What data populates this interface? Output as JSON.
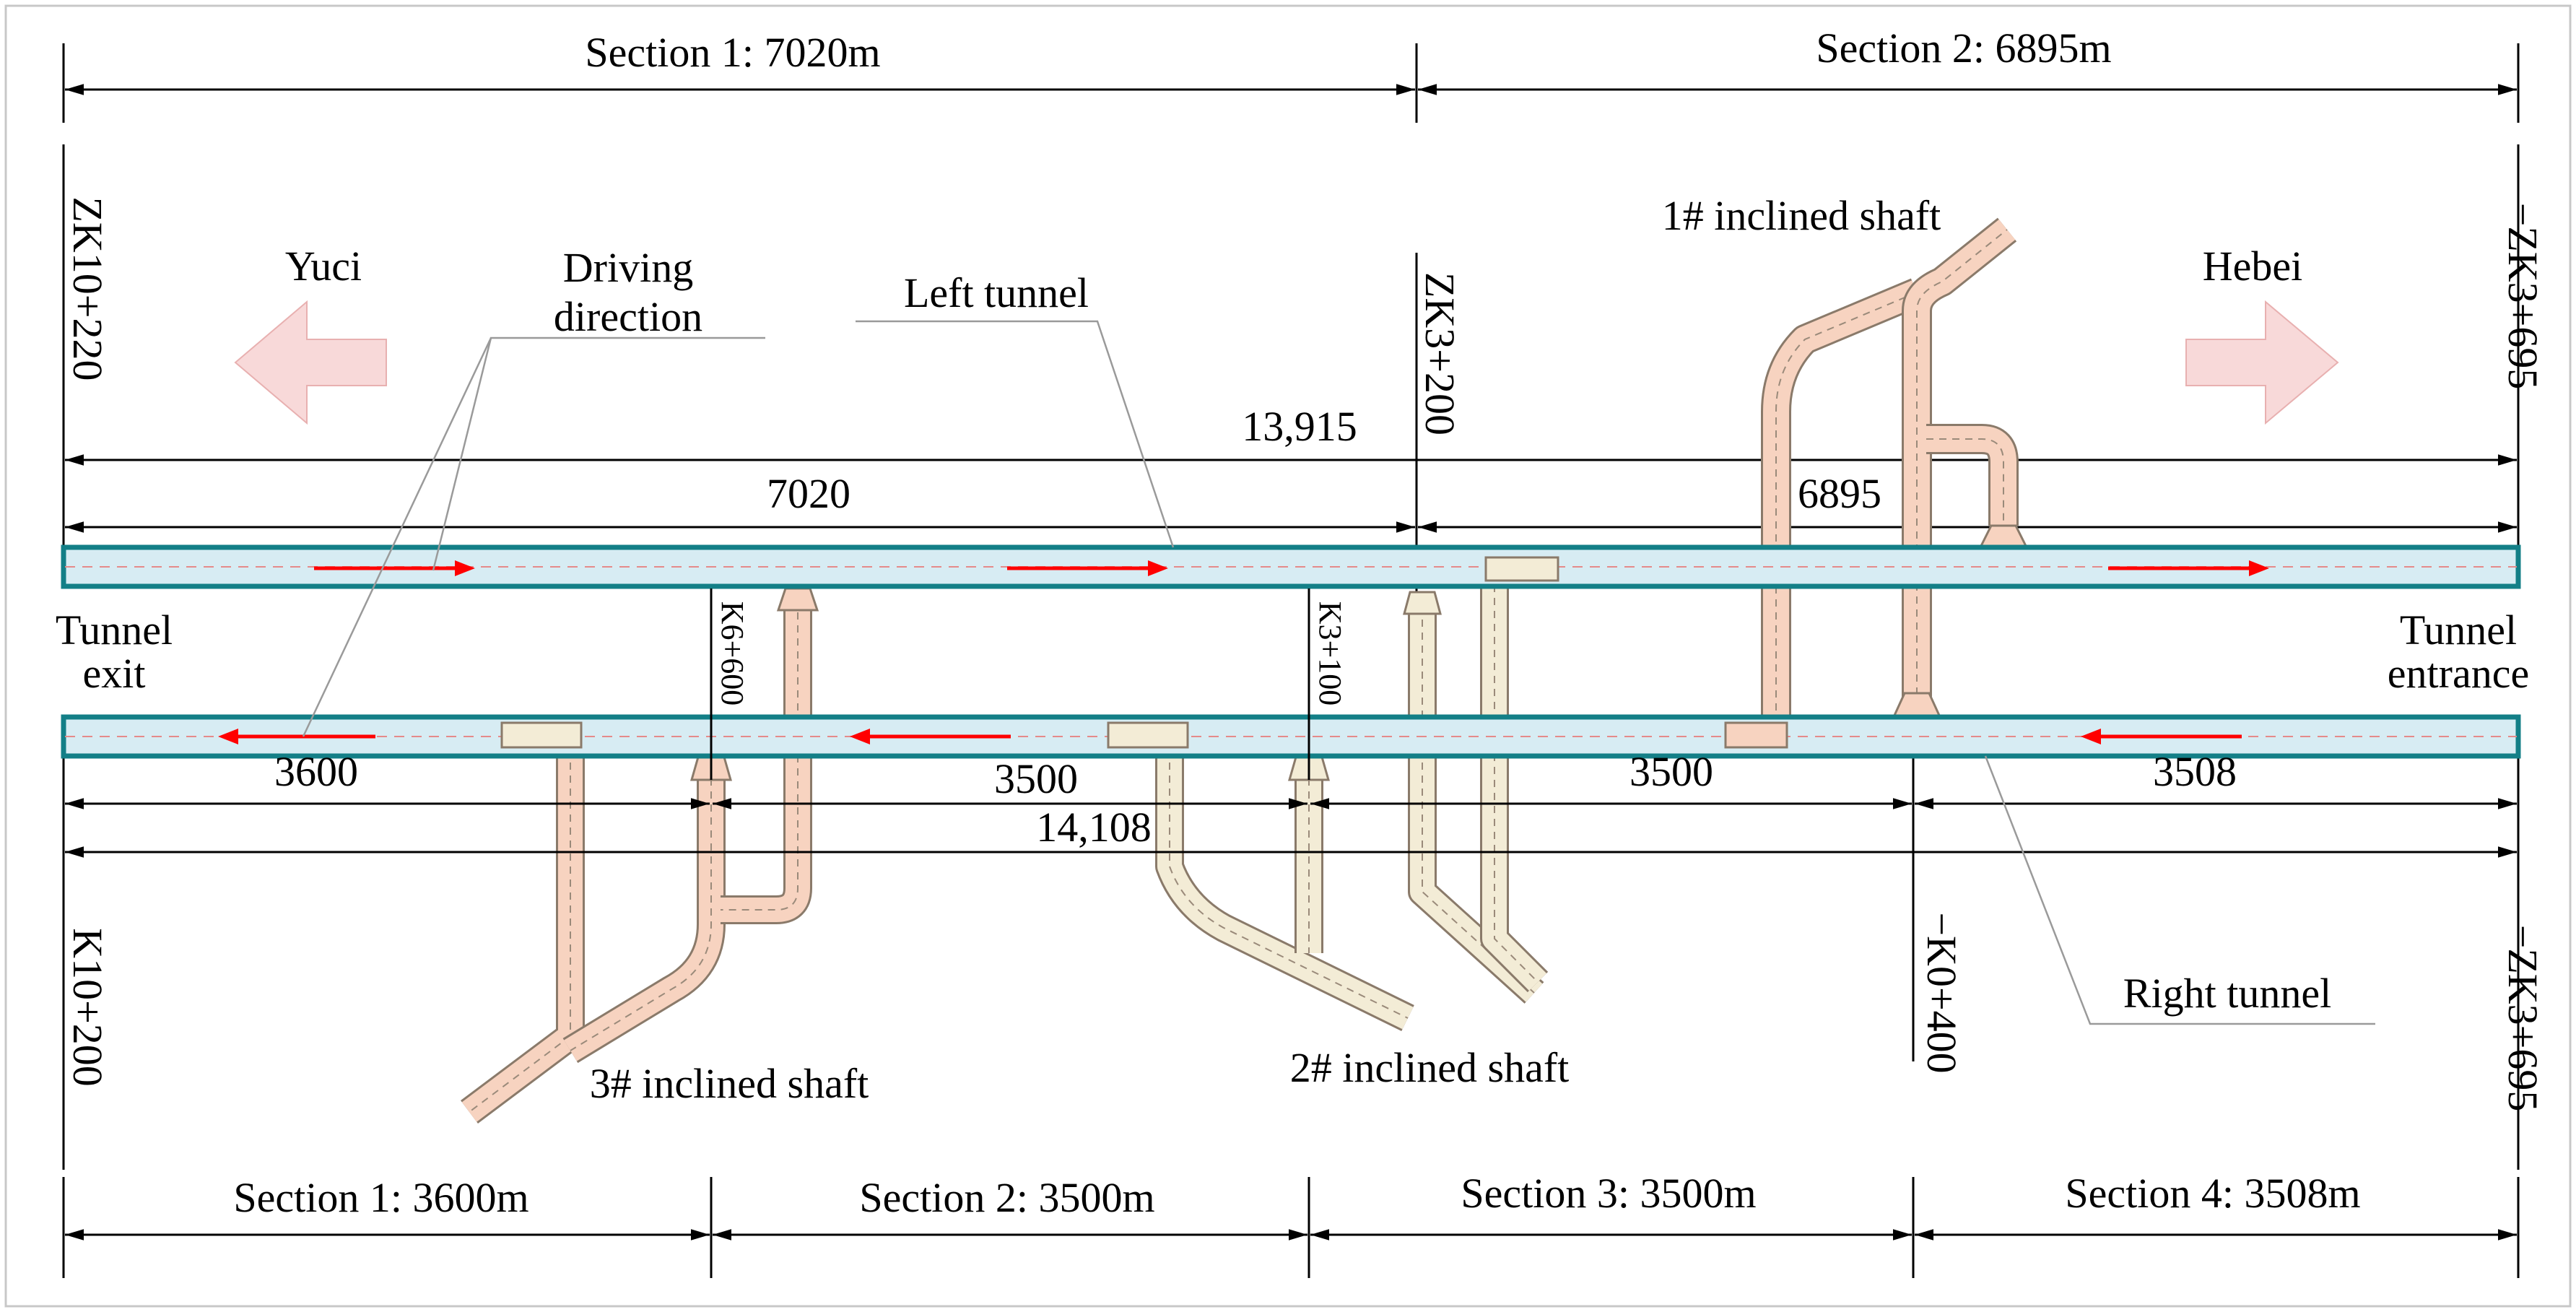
{
  "top_sections": [
    {
      "label": "Section 1: 7020m"
    },
    {
      "label": "Section 2: 6895m"
    }
  ],
  "bottom_sections": [
    {
      "label": "Section 1: 3600m"
    },
    {
      "label": "Section 2: 3500m"
    },
    {
      "label": "Section 3: 3500m"
    },
    {
      "label": "Section 4: 3508m"
    }
  ],
  "directions": {
    "left": "Yuci",
    "right": "Hebei",
    "left_color": "#f8d9d9",
    "right_color": "#f8d9d9"
  },
  "labels": {
    "driving_direction_line1": "Driving",
    "driving_direction_line2": "direction",
    "left_tunnel": "Left tunnel",
    "right_tunnel": "Right tunnel",
    "tunnel_exit_line1": "Tunnel",
    "tunnel_exit_line2": "exit",
    "tunnel_entrance_line1": "Tunnel",
    "tunnel_entrance_line2": "entrance"
  },
  "shafts": {
    "shaft1": "1# inclined shaft",
    "shaft2": "2# inclined shaft",
    "shaft3": "3# inclined shaft",
    "fill_color": "#f7d3c0",
    "light_fill_color": "#f3ecd6"
  },
  "stations": {
    "zk10_220": "ZK10+220",
    "zk3_200": "ZK3+200",
    "zk3_695_top": "−ZK3+695",
    "k10_200": "K10+200",
    "k6_600": "K6+600",
    "k3_100": "K3+100",
    "k0_400": "−K0+400",
    "zk3_695_bottom": "−ZK3+695"
  },
  "left_tunnel_dims": {
    "total": "13,915",
    "first": "7020",
    "second": "6895"
  },
  "right_tunnel_dims": {
    "total": "14,108",
    "seg1": "3600",
    "seg2": "3500",
    "seg3": "3500",
    "seg4": "3508"
  },
  "colors": {
    "tunnel_fill": "#d7ecf3",
    "tunnel_border": "#137f87",
    "arrow_red": "#ff0000"
  }
}
